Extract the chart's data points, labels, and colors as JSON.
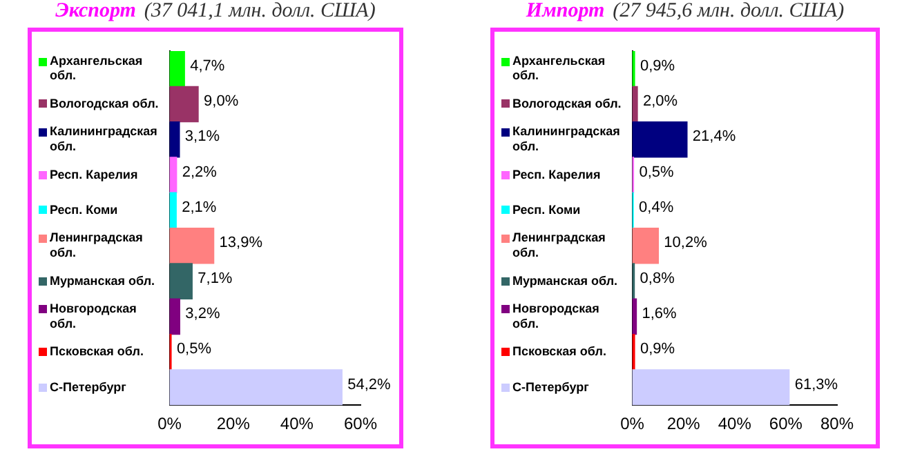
{
  "chart_data": [
    {
      "type": "bar",
      "orientation": "horizontal",
      "title": "Экспорт",
      "subtitle": "(37 041,1 млн. долл. США)",
      "categories": [
        "Архангельская обл.",
        "Вологодская обл.",
        "Калининградская обл.",
        "Респ. Карелия",
        "Респ. Коми",
        "Ленинградская обл.",
        "Мурманская обл.",
        "Новгородская обл.",
        "Псковская обл.",
        "С-Петербург"
      ],
      "values": [
        4.7,
        9.0,
        3.1,
        2.2,
        2.1,
        13.9,
        7.1,
        3.2,
        0.5,
        54.2
      ],
      "value_labels": [
        "4,7%",
        "9,0%",
        "3,1%",
        "2,2%",
        "2,1%",
        "13,9%",
        "7,1%",
        "3,2%",
        "0,5%",
        "54,2%"
      ],
      "colors": [
        "#00ff00",
        "#993366",
        "#000080",
        "#ff66ff",
        "#00ffff",
        "#ff8080",
        "#336666",
        "#800080",
        "#ff0000",
        "#ccccff"
      ],
      "xlim": [
        0,
        60
      ],
      "xticks": [
        {
          "value": 0,
          "label": "0%"
        },
        {
          "value": 20,
          "label": "20%"
        },
        {
          "value": 40,
          "label": "40%"
        },
        {
          "value": 60,
          "label": "60%"
        }
      ],
      "grid": false,
      "legend": false
    },
    {
      "type": "bar",
      "orientation": "horizontal",
      "title": "Импорт",
      "subtitle": "(27 945,6 млн. долл. США)",
      "categories": [
        "Архангельская обл.",
        "Вологодская обл.",
        "Калининградская обл.",
        "Респ. Карелия",
        "Респ. Коми",
        "Ленинградская обл.",
        "Мурманская обл.",
        "Новгородская обл.",
        "Псковская обл.",
        "С-Петербург"
      ],
      "values": [
        0.9,
        2.0,
        21.4,
        0.5,
        0.4,
        10.2,
        0.8,
        1.6,
        0.9,
        61.3
      ],
      "value_labels": [
        "0,9%",
        "2,0%",
        "21,4%",
        "0,5%",
        "0,4%",
        "10,2%",
        "0,8%",
        "1,6%",
        "0,9%",
        "61,3%"
      ],
      "colors": [
        "#00ff00",
        "#993366",
        "#000080",
        "#ff66ff",
        "#00ffff",
        "#ff8080",
        "#336666",
        "#800080",
        "#ff0000",
        "#ccccff"
      ],
      "xlim": [
        0,
        80
      ],
      "xticks": [
        {
          "value": 0,
          "label": "0%"
        },
        {
          "value": 20,
          "label": "20%"
        },
        {
          "value": 40,
          "label": "40%"
        },
        {
          "value": 60,
          "label": "60%"
        },
        {
          "value": 80,
          "label": "80%"
        }
      ],
      "grid": false,
      "legend": false
    }
  ]
}
